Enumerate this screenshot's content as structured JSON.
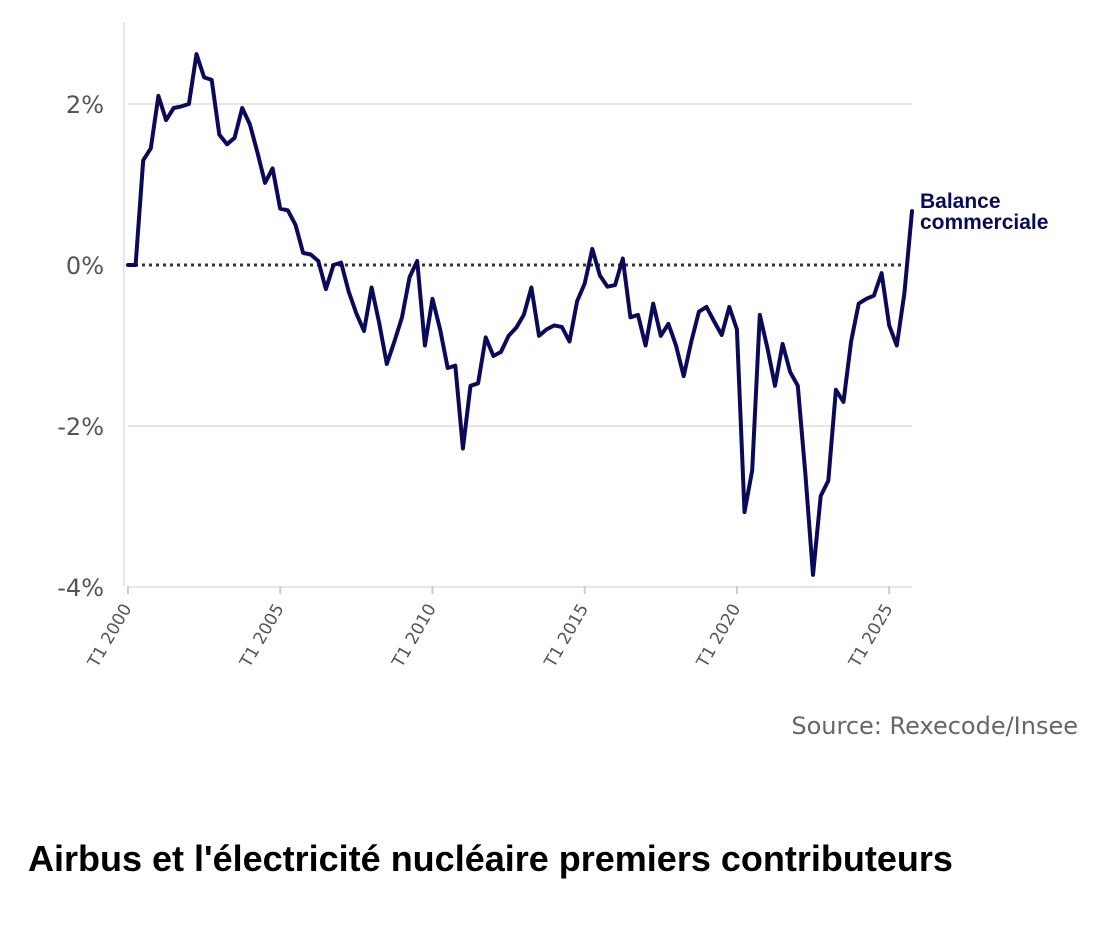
{
  "headline": "Airbus et l'électricité nucléaire premiers contributeurs",
  "source": "Source: Rexecode/Insee",
  "colors": {
    "line": "#0a0a5a",
    "grid": "#e6e6e6",
    "zero": "#333333",
    "text": "#555555"
  },
  "chart_data": {
    "type": "line",
    "title": "",
    "xlabel": "",
    "ylabel": "",
    "ylim": [
      -4,
      3
    ],
    "y_ticks": [
      {
        "value": 2,
        "label": "2%"
      },
      {
        "value": 0,
        "label": "0%"
      },
      {
        "value": -2,
        "label": "-2%"
      },
      {
        "value": -4,
        "label": "-4%"
      }
    ],
    "x_ticks": [
      {
        "value": 2000,
        "label": "T1 2000"
      },
      {
        "value": 2005,
        "label": "T1 2005"
      },
      {
        "value": 2010,
        "label": "T1 2010"
      },
      {
        "value": 2015,
        "label": "T1 2015"
      },
      {
        "value": 2020,
        "label": "T1 2020"
      },
      {
        "value": 2025,
        "label": "T1 2025"
      }
    ],
    "x_start": 2000,
    "x_step": 0.25,
    "zero_line": "dotted",
    "grid": "horizontal",
    "series": [
      {
        "name": "Balance commerciale",
        "values": [
          0.0,
          0.0,
          1.3,
          1.45,
          2.1,
          1.8,
          1.95,
          1.97,
          2.0,
          2.62,
          2.33,
          2.3,
          1.62,
          1.5,
          1.58,
          1.95,
          1.75,
          1.4,
          1.02,
          1.2,
          0.7,
          0.68,
          0.5,
          0.15,
          0.13,
          0.05,
          -0.3,
          0.0,
          0.03,
          -0.33,
          -0.6,
          -0.82,
          -0.28,
          -0.72,
          -1.23,
          -0.95,
          -0.65,
          -0.15,
          0.05,
          -1.0,
          -0.42,
          -0.8,
          -1.28,
          -1.25,
          -2.28,
          -1.5,
          -1.47,
          -0.9,
          -1.13,
          -1.08,
          -0.88,
          -0.78,
          -0.62,
          -0.28,
          -0.88,
          -0.8,
          -0.75,
          -0.77,
          -0.95,
          -0.45,
          -0.23,
          0.2,
          -0.13,
          -0.27,
          -0.25,
          0.08,
          -0.65,
          -0.62,
          -1.0,
          -0.48,
          -0.88,
          -0.73,
          -1.0,
          -1.38,
          -0.95,
          -0.58,
          -0.52,
          -0.7,
          -0.87,
          -0.52,
          -0.8,
          -3.07,
          -2.55,
          -0.62,
          -1.03,
          -1.5,
          -0.98,
          -1.33,
          -1.5,
          -2.6,
          -3.85,
          -2.87,
          -2.68,
          -1.55,
          -1.7,
          -0.95,
          -0.48,
          -0.42,
          -0.38,
          -0.1,
          -0.75,
          -1.0,
          -0.35,
          0.67
        ]
      }
    ],
    "series_label_lines": [
      "Balance",
      "commerciale"
    ]
  }
}
